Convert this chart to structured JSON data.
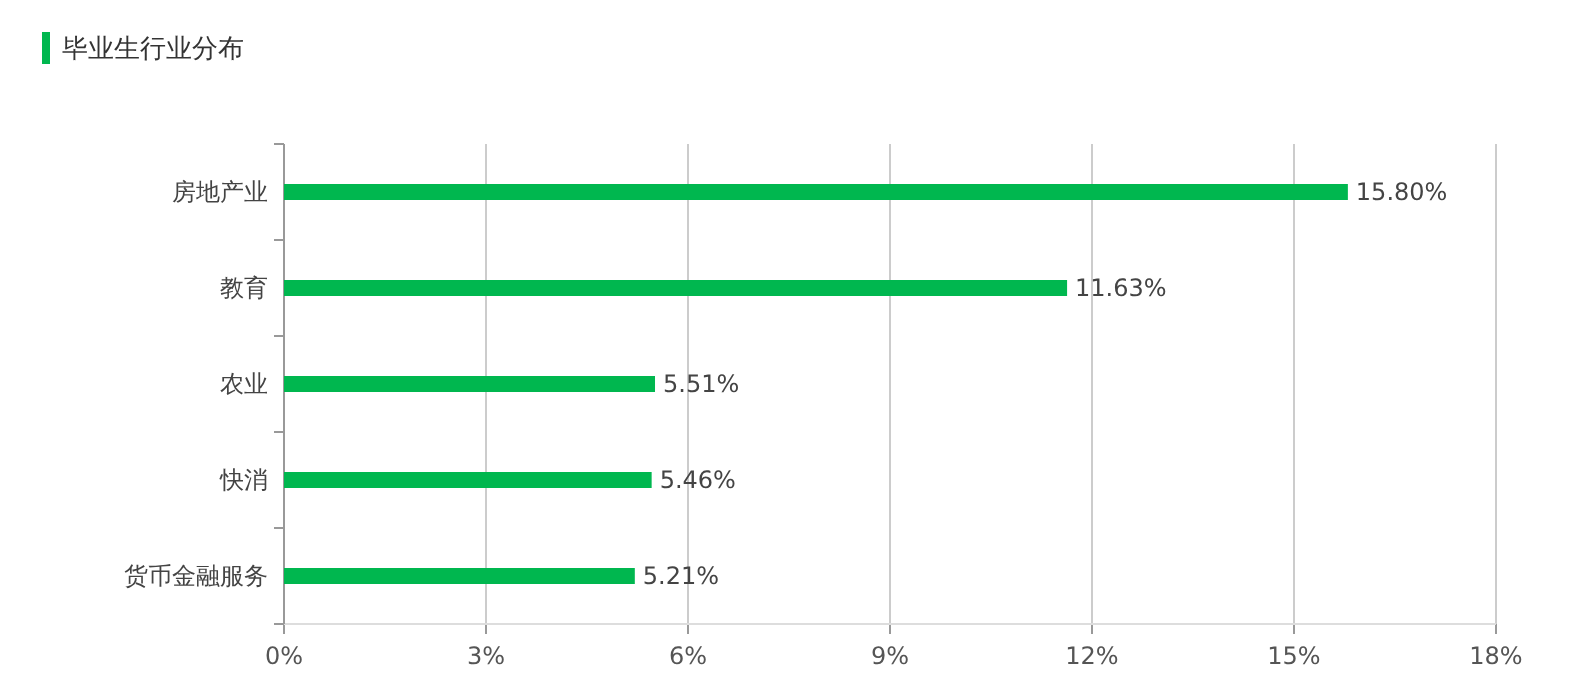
{
  "chart_data": {
    "type": "bar",
    "orientation": "horizontal",
    "title": "毕业生行业分布",
    "categories": [
      "房地产业",
      "教育",
      "农业",
      "快消",
      "货币金融服务"
    ],
    "values": [
      15.8,
      11.63,
      5.51,
      5.46,
      5.21
    ],
    "value_labels": [
      "15.80%",
      "11.63%",
      "5.51%",
      "5.46%",
      "5.21%"
    ],
    "color": "#00b74f",
    "xlim": [
      0,
      18
    ],
    "xticks": [
      {
        "value": 0,
        "label": "0%"
      },
      {
        "value": 3,
        "label": "3%"
      },
      {
        "value": 6,
        "label": "6%"
      },
      {
        "value": 9,
        "label": "9%"
      },
      {
        "value": 12,
        "label": "12%"
      },
      {
        "value": 15,
        "label": "15%"
      },
      {
        "value": 18,
        "label": "18%"
      }
    ],
    "grid": "x"
  }
}
